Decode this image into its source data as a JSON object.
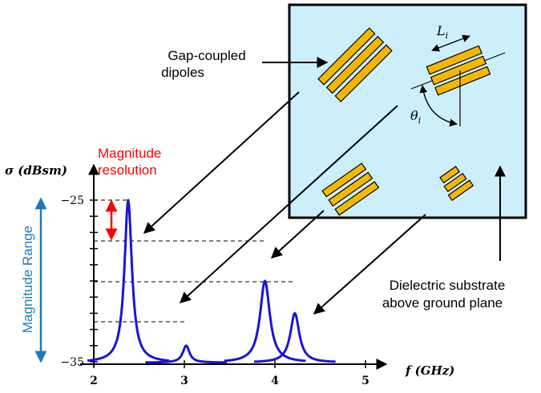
{
  "labels": {
    "gap_coupled": [
      "Gap-coupled",
      "dipoles"
    ],
    "magnitude_resolution": [
      "Magnitude",
      "resolution"
    ],
    "magnitude_range": "Magnitude Range",
    "dielectric": [
      "Dielectric substrate",
      "above ground plane"
    ],
    "length_symbol": "L",
    "length_sub": "i",
    "angle_symbol": "θ",
    "angle_sub": "i"
  },
  "chart_data": {
    "type": "line",
    "ylabel": "σ (dBsm)",
    "xlabel": "f (GHz)",
    "x_ticks": [
      "2",
      "3",
      "4",
      "5"
    ],
    "x_tick_values": [
      2,
      3,
      4,
      5
    ],
    "y_ticks": [
      "−25",
      "−35"
    ],
    "y_tick_values": [
      -25,
      -35
    ],
    "xlim": [
      2,
      5.2
    ],
    "ylim": [
      -37,
      -24
    ],
    "peaks": [
      {
        "f": 2.38,
        "sigma": -25,
        "width": 0.05
      },
      {
        "f": 3.02,
        "sigma": -34,
        "width": 0.045
      },
      {
        "f": 3.89,
        "sigma": -30,
        "width": 0.065
      },
      {
        "f": 4.22,
        "sigma": -32,
        "width": 0.06
      }
    ]
  },
  "colors": {
    "curve": "#1b14d6",
    "substrate": "#cdeffc",
    "dipole": "#f5b800",
    "resolution": "#ff0000",
    "range": "#1f7ab8"
  }
}
